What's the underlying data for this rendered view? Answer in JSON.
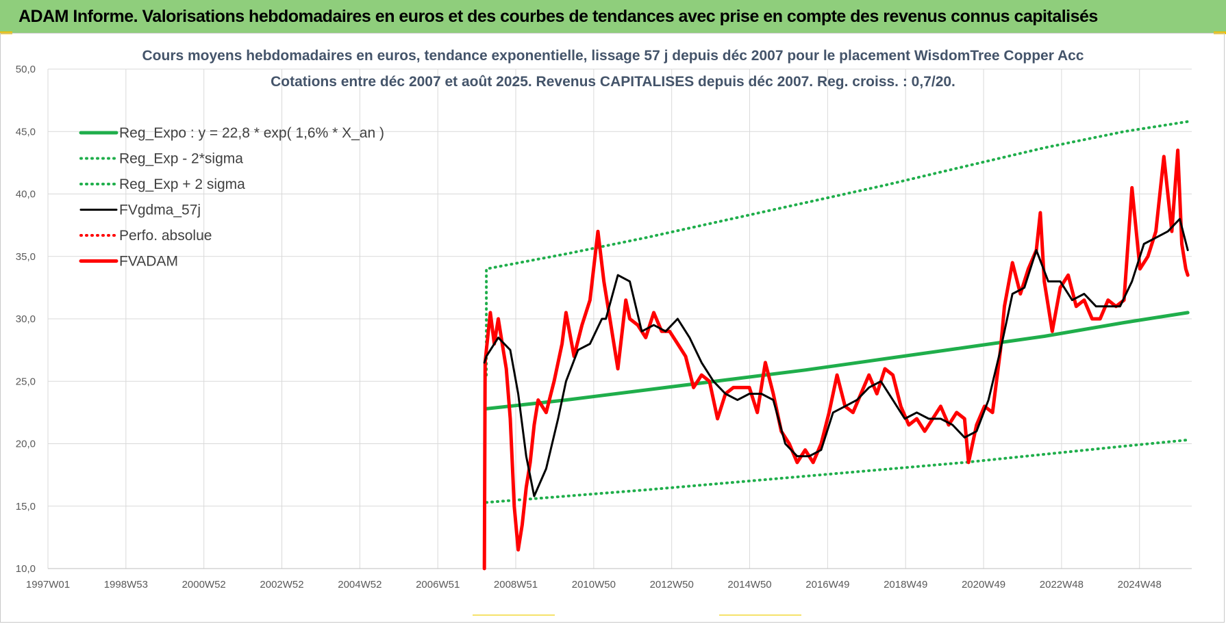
{
  "header": {
    "title": "ADAM Informe. Valorisations hebdomadaires en euros et des courbes de tendances avec prise en compte des revenus connus capitalisés"
  },
  "colors": {
    "header_bg": "#8fce7c",
    "reg_green": "#1fae4b",
    "sigma_green": "#1fae4b",
    "smooth_black": "#000000",
    "adam_red": "#ff0000"
  },
  "chart_data": {
    "type": "line",
    "title_line1": "Cours moyens hebdomadaires en euros, tendance exponentielle, lissage 57 j depuis déc 2007 pour le placement WisdomTree Copper Acc",
    "title_line2": "Cotations entre déc 2007 et août 2025. Revenus CAPITALISES depuis déc 2007. Reg. croiss. : 0,7/20.",
    "x_tick_labels": [
      "1997W01",
      "1998W53",
      "2000W52",
      "2002W52",
      "2004W52",
      "2006W51",
      "2008W51",
      "2010W50",
      "2012W50",
      "2014W50",
      "2016W49",
      "2018W49",
      "2020W49",
      "2022W48",
      "2024W48"
    ],
    "y_tick_labels": [
      "10,0",
      "15,0",
      "20,0",
      "25,0",
      "30,0",
      "35,0",
      "40,0",
      "45,0",
      "50,0"
    ],
    "xlim": [
      1997.0,
      2025.7
    ],
    "ylim": [
      10,
      50
    ],
    "grid": true,
    "legend_position": "top-left",
    "legend": [
      {
        "label": "Reg_Expo : y = 22,8 * exp( 1,6% *  X_an )",
        "style": "solid-thick",
        "color": "#1fae4b"
      },
      {
        "label": "Reg_Exp - 2*sigma",
        "style": "dotted",
        "color": "#1fae4b"
      },
      {
        "label": "Reg_Exp + 2 sigma",
        "style": "dotted",
        "color": "#1fae4b"
      },
      {
        "label": "FVgdma_57j",
        "style": "solid",
        "color": "#000000"
      },
      {
        "label": "Perfo. absolue",
        "style": "dotted",
        "color": "#ff0000"
      },
      {
        "label": "FVADAM",
        "style": "solid-thick",
        "color": "#ff0000"
      }
    ],
    "series": [
      {
        "name": "Reg_Expo : y = 22,8 * exp( 1,6% *  X_an )",
        "x": [
          2008.0,
          2010.0,
          2012.0,
          2014.0,
          2016.0,
          2018.0,
          2020.0,
          2022.0,
          2024.0,
          2025.6
        ],
        "values": [
          22.8,
          23.5,
          24.3,
          25.1,
          25.9,
          26.8,
          27.7,
          28.6,
          29.7,
          30.5
        ]
      },
      {
        "name": "Reg_Exp - 2*sigma",
        "x": [
          2008.0,
          2012.0,
          2016.0,
          2020.0,
          2024.0,
          2025.6
        ],
        "values": [
          15.3,
          16.3,
          17.4,
          18.5,
          19.8,
          20.3
        ]
      },
      {
        "name": "Reg_Exp + 2 sigma",
        "x": [
          2008.0,
          2010.0,
          2012.0,
          2014.0,
          2016.0,
          2018.0,
          2020.0,
          2022.0,
          2024.0,
          2025.6
        ],
        "values": [
          34.0,
          35.2,
          36.5,
          37.9,
          39.3,
          40.7,
          42.2,
          43.7,
          45.0,
          45.8
        ]
      },
      {
        "name": "FVgdma_57j",
        "x": [
          2007.95,
          2008.0,
          2008.3,
          2008.6,
          2008.8,
          2009.0,
          2009.2,
          2009.5,
          2009.8,
          2010.0,
          2010.3,
          2010.6,
          2010.9,
          2011.0,
          2011.3,
          2011.6,
          2011.9,
          2012.2,
          2012.5,
          2012.8,
          2013.1,
          2013.4,
          2013.7,
          2014.0,
          2014.3,
          2014.6,
          2014.9,
          2015.2,
          2015.5,
          2015.8,
          2016.1,
          2016.4,
          2016.7,
          2017.0,
          2017.3,
          2017.6,
          2017.9,
          2018.2,
          2018.5,
          2018.8,
          2019.1,
          2019.4,
          2019.7,
          2020.0,
          2020.3,
          2020.6,
          2020.9,
          2021.2,
          2021.5,
          2021.8,
          2022.1,
          2022.4,
          2022.7,
          2023.0,
          2023.3,
          2023.6,
          2023.9,
          2024.2,
          2024.5,
          2024.8,
          2025.1,
          2025.4,
          2025.6
        ],
        "values": [
          26.5,
          27.0,
          28.5,
          27.5,
          24.0,
          19.0,
          15.8,
          18.0,
          22.0,
          25.0,
          27.5,
          28.0,
          30.0,
          30.0,
          33.5,
          33.0,
          29.0,
          29.5,
          29.0,
          30.0,
          28.5,
          26.5,
          25.0,
          24.0,
          23.5,
          24.0,
          24.0,
          23.5,
          20.0,
          19.0,
          19.0,
          19.5,
          22.5,
          23.0,
          23.5,
          24.5,
          25.0,
          23.5,
          22.0,
          22.5,
          22.0,
          22.0,
          21.5,
          20.5,
          21.0,
          23.5,
          27.5,
          32.0,
          32.5,
          35.5,
          33.0,
          33.0,
          31.5,
          32.0,
          31.0,
          31.0,
          31.0,
          33.0,
          36.0,
          36.5,
          37.0,
          38.0,
          35.5
        ]
      },
      {
        "name": "FVADAM",
        "x": [
          2007.95,
          2007.97,
          2008.0,
          2008.1,
          2008.2,
          2008.3,
          2008.4,
          2008.5,
          2008.6,
          2008.7,
          2008.8,
          2008.9,
          2009.0,
          2009.1,
          2009.2,
          2009.3,
          2009.5,
          2009.7,
          2009.9,
          2010.0,
          2010.2,
          2010.4,
          2010.6,
          2010.8,
          2010.95,
          2011.1,
          2011.3,
          2011.5,
          2011.6,
          2011.8,
          2012.0,
          2012.2,
          2012.4,
          2012.6,
          2012.8,
          2013.0,
          2013.2,
          2013.4,
          2013.6,
          2013.8,
          2014.0,
          2014.2,
          2014.4,
          2014.6,
          2014.8,
          2015.0,
          2015.2,
          2015.4,
          2015.6,
          2015.8,
          2016.0,
          2016.2,
          2016.4,
          2016.6,
          2016.8,
          2017.0,
          2017.2,
          2017.4,
          2017.6,
          2017.8,
          2018.0,
          2018.2,
          2018.4,
          2018.6,
          2018.8,
          2019.0,
          2019.2,
          2019.4,
          2019.6,
          2019.8,
          2020.0,
          2020.1,
          2020.3,
          2020.5,
          2020.7,
          2020.9,
          2021.0,
          2021.2,
          2021.4,
          2021.6,
          2021.8,
          2021.9,
          2022.0,
          2022.2,
          2022.4,
          2022.6,
          2022.8,
          2023.0,
          2023.2,
          2023.4,
          2023.6,
          2023.8,
          2024.0,
          2024.2,
          2024.4,
          2024.6,
          2024.8,
          2025.0,
          2025.2,
          2025.35,
          2025.45,
          2025.55,
          2025.6
        ],
        "values": [
          10.0,
          26.5,
          27.5,
          30.5,
          28.0,
          30.0,
          28.0,
          26.0,
          22.0,
          15.0,
          11.5,
          13.5,
          16.5,
          18.5,
          21.5,
          23.5,
          22.5,
          25.0,
          28.0,
          30.5,
          27.0,
          29.5,
          31.5,
          37.0,
          33.0,
          30.0,
          26.0,
          31.5,
          30.0,
          29.5,
          28.5,
          30.5,
          29.0,
          29.0,
          28.0,
          27.0,
          24.5,
          25.5,
          25.0,
          22.0,
          24.0,
          24.5,
          24.5,
          24.5,
          22.5,
          26.5,
          24.0,
          21.0,
          20.0,
          18.5,
          19.5,
          18.5,
          20.0,
          22.5,
          25.5,
          23.0,
          22.5,
          24.0,
          25.5,
          24.0,
          26.0,
          25.5,
          23.0,
          21.5,
          22.0,
          21.0,
          22.0,
          23.0,
          21.5,
          22.5,
          22.0,
          18.5,
          21.5,
          23.0,
          22.5,
          27.5,
          31.0,
          34.5,
          32.0,
          34.0,
          35.5,
          38.5,
          33.0,
          29.0,
          32.5,
          33.5,
          31.0,
          31.5,
          30.0,
          30.0,
          31.5,
          31.0,
          31.5,
          40.5,
          34.0,
          35.0,
          37.0,
          43.0,
          37.0,
          43.5,
          36.0,
          34.0,
          33.5
        ]
      }
    ]
  }
}
